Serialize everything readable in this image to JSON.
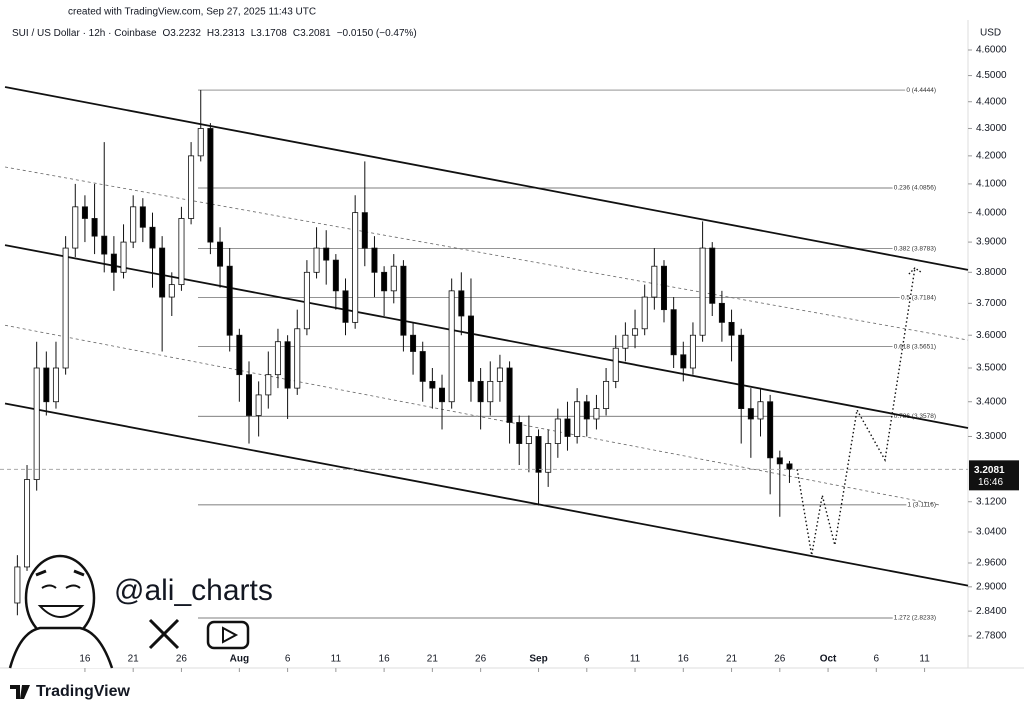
{
  "header": {
    "created": "created with TradingView.com, Sep 27, 2025 11:43 UTC",
    "symbol": "SUI / US Dollar · 12h · Coinbase",
    "o": "O",
    "h": "H",
    "l": "L",
    "c": "C",
    "change": "−0.0150 (−0.47%)",
    "currency": "USD",
    "countdown": "16:46",
    "watermark": "@ali_charts",
    "brand": "TradingView"
  },
  "chart_data": {
    "type": "candlestick",
    "x": [
      9,
      10,
      11,
      12,
      13,
      14,
      15,
      16,
      17,
      18,
      19,
      20,
      21,
      22,
      23,
      24,
      25,
      26,
      27,
      28,
      29,
      30,
      31,
      32,
      33,
      34,
      35,
      36,
      37,
      38,
      39,
      40,
      41,
      42,
      43,
      44,
      45,
      46,
      47,
      48,
      49,
      50,
      51,
      52,
      53,
      54,
      55,
      56,
      57,
      58,
      59,
      60,
      61,
      62,
      63,
      64,
      65,
      66,
      67,
      68,
      69,
      70,
      71,
      72,
      73,
      74,
      75,
      76,
      77,
      78,
      79,
      80,
      81,
      82,
      83,
      84,
      85,
      86,
      87,
      88,
      89
    ],
    "open": [
      2.86,
      2.95,
      3.18,
      3.5,
      3.4,
      3.5,
      3.88,
      4.02,
      3.98,
      3.92,
      3.86,
      3.8,
      3.9,
      4.02,
      3.95,
      3.88,
      3.72,
      3.76,
      3.98,
      4.2,
      4.3,
      3.9,
      3.82,
      3.6,
      3.48,
      3.36,
      3.42,
      3.48,
      3.58,
      3.44,
      3.62,
      3.8,
      3.88,
      3.84,
      3.74,
      3.64,
      4.0,
      3.88,
      3.8,
      3.74,
      3.82,
      3.6,
      3.55,
      3.46,
      3.44,
      3.4,
      3.74,
      3.66,
      3.46,
      3.4,
      3.46,
      3.5,
      3.34,
      3.28,
      3.3,
      3.2,
      3.28,
      3.35,
      3.3,
      3.4,
      3.35,
      3.38,
      3.46,
      3.56,
      3.6,
      3.62,
      3.72,
      3.82,
      3.68,
      3.54,
      3.5,
      3.6,
      3.88,
      3.7,
      3.64,
      3.6,
      3.38,
      3.35,
      3.4,
      3.24,
      3.2232
    ],
    "high": [
      2.98,
      3.22,
      3.58,
      3.55,
      3.58,
      3.92,
      4.1,
      4.06,
      4.1,
      4.25,
      3.92,
      3.96,
      4.06,
      4.05,
      4.0,
      3.92,
      3.8,
      4.02,
      4.25,
      4.4444,
      4.32,
      3.95,
      3.88,
      3.62,
      3.52,
      3.46,
      3.55,
      3.62,
      3.6,
      3.68,
      3.84,
      3.95,
      3.94,
      3.86,
      3.78,
      4.06,
      4.18,
      3.92,
      3.82,
      3.86,
      3.84,
      3.64,
      3.58,
      3.5,
      3.48,
      3.78,
      3.8,
      3.78,
      3.5,
      3.52,
      3.54,
      3.52,
      3.36,
      3.36,
      3.32,
      3.32,
      3.38,
      3.4,
      3.44,
      3.42,
      3.42,
      3.5,
      3.6,
      3.64,
      3.68,
      3.76,
      3.88,
      3.84,
      3.72,
      3.58,
      3.64,
      3.97,
      3.9,
      3.74,
      3.68,
      3.62,
      3.44,
      3.44,
      3.42,
      3.26,
      3.2313
    ],
    "low": [
      2.83,
      2.94,
      3.15,
      3.36,
      3.38,
      3.48,
      3.85,
      3.9,
      3.86,
      3.8,
      3.74,
      3.78,
      3.88,
      3.9,
      3.75,
      3.55,
      3.66,
      3.74,
      3.96,
      4.18,
      3.86,
      3.75,
      3.55,
      3.4,
      3.28,
      3.3,
      3.38,
      3.44,
      3.35,
      3.42,
      3.6,
      3.78,
      3.76,
      3.68,
      3.6,
      3.62,
      3.82,
      3.72,
      3.66,
      3.7,
      3.55,
      3.48,
      3.4,
      3.38,
      3.32,
      3.38,
      3.6,
      3.4,
      3.32,
      3.36,
      3.4,
      3.28,
      3.22,
      3.2,
      3.11,
      3.16,
      3.24,
      3.26,
      3.28,
      3.3,
      3.32,
      3.36,
      3.44,
      3.52,
      3.56,
      3.6,
      3.68,
      3.64,
      3.5,
      3.46,
      3.48,
      3.58,
      3.66,
      3.58,
      3.52,
      3.28,
      3.24,
      3.3,
      3.14,
      3.08,
      3.1708
    ],
    "close": [
      2.95,
      3.18,
      3.5,
      3.4,
      3.5,
      3.88,
      4.02,
      3.98,
      3.92,
      3.86,
      3.8,
      3.9,
      4.02,
      3.95,
      3.88,
      3.72,
      3.76,
      3.98,
      4.2,
      4.3,
      3.9,
      3.82,
      3.6,
      3.48,
      3.36,
      3.42,
      3.48,
      3.58,
      3.44,
      3.62,
      3.8,
      3.88,
      3.84,
      3.74,
      3.64,
      4.0,
      3.88,
      3.8,
      3.74,
      3.82,
      3.6,
      3.55,
      3.46,
      3.44,
      3.4,
      3.74,
      3.66,
      3.46,
      3.4,
      3.46,
      3.5,
      3.34,
      3.28,
      3.3,
      3.2,
      3.28,
      3.35,
      3.3,
      3.4,
      3.35,
      3.38,
      3.46,
      3.56,
      3.6,
      3.62,
      3.72,
      3.82,
      3.68,
      3.54,
      3.5,
      3.6,
      3.88,
      3.7,
      3.64,
      3.6,
      3.38,
      3.35,
      3.4,
      3.24,
      3.2232,
      3.2081
    ],
    "color_up": "#ffffff",
    "color_down": "#000000",
    "ylim": [
      2.78,
      4.6
    ],
    "log_scale": true,
    "yticks": [
      {
        "value": 4.6,
        "label": "4.6000"
      },
      {
        "value": 4.5,
        "label": "4.5000"
      },
      {
        "value": 4.4,
        "label": "4.4000"
      },
      {
        "value": 4.3,
        "label": "4.3000"
      },
      {
        "value": 4.2,
        "label": "4.2000"
      },
      {
        "value": 4.1,
        "label": "4.1000"
      },
      {
        "value": 4.0,
        "label": "4.0000"
      },
      {
        "value": 3.9,
        "label": "3.9000"
      },
      {
        "value": 3.8,
        "label": "3.8000"
      },
      {
        "value": 3.7,
        "label": "3.7000"
      },
      {
        "value": 3.6,
        "label": "3.6000"
      },
      {
        "value": 3.5,
        "label": "3.5000"
      },
      {
        "value": 3.4,
        "label": "3.4000"
      },
      {
        "value": 3.3,
        "label": "3.3000"
      },
      {
        "value": 3.12,
        "label": "3.1200"
      },
      {
        "value": 3.04,
        "label": "3.0400"
      },
      {
        "value": 2.96,
        "label": "2.9600"
      },
      {
        "value": 2.9,
        "label": "2.9000"
      },
      {
        "value": 2.84,
        "label": "2.8400"
      },
      {
        "value": 2.78,
        "label": "2.7800"
      }
    ],
    "xlim": [
      7.2,
      107.5
    ],
    "xticks": [
      16,
      21,
      26,
      {
        "value": 32,
        "label": "Aug"
      },
      {
        "value": 37,
        "label": "6"
      },
      {
        "value": 42,
        "label": "11"
      },
      {
        "value": 47,
        "label": "16"
      },
      {
        "value": 52,
        "label": "21"
      },
      {
        "value": 57,
        "label": "26"
      },
      {
        "value": 63,
        "label": "Sep"
      },
      {
        "value": 68,
        "label": "6"
      },
      {
        "value": 73,
        "label": "11"
      },
      {
        "value": 78,
        "label": "16"
      },
      {
        "value": 83,
        "label": "21"
      },
      {
        "value": 88,
        "label": "26"
      },
      {
        "value": 93,
        "label": "Oct"
      },
      {
        "value": 98,
        "label": "6"
      },
      {
        "value": 103,
        "label": "11"
      }
    ],
    "fib_levels": [
      {
        "value": 4.4444,
        "label": "0 (4.4444)"
      },
      {
        "value": 4.0856,
        "label": "0.236 (4.0856)"
      },
      {
        "value": 3.8783,
        "label": "0.382 (3.8783)"
      },
      {
        "value": 3.7184,
        "label": "0.5 (3.7184)"
      },
      {
        "value": 3.5651,
        "label": "0.618 (3.5651)"
      },
      {
        "value": 3.3578,
        "label": "0.786 (3.3578)"
      },
      {
        "value": 3.1116,
        "label": "1 (3.1116)"
      },
      {
        "value": 2.8233,
        "label": "1.272 (2.8233)"
      }
    ],
    "trendlines": [
      {
        "x": [
          7.72,
          107.5
        ],
        "y": [
          4.456,
          3.808
        ],
        "style": "solid"
      },
      {
        "x": [
          7.72,
          107.5
        ],
        "y": [
          3.89,
          3.324
        ],
        "style": "solid"
      },
      {
        "x": [
          7.72,
          107.5
        ],
        "y": [
          3.395,
          2.903
        ],
        "style": "solid"
      },
      {
        "x": [
          7.72,
          107.5
        ],
        "y": [
          4.16,
          3.585
        ],
        "style": "dashed"
      },
      {
        "x": [
          7.72,
          104.6
        ],
        "y": [
          3.631,
          3.111
        ],
        "style": "dashed"
      }
    ],
    "projection": {
      "x": [
        89.8,
        91.3,
        92.4,
        93.7,
        96.0,
        98.9,
        102.0
      ],
      "y": [
        3.208,
        2.98,
        3.137,
        3.006,
        3.376,
        3.234,
        3.814
      ]
    }
  }
}
